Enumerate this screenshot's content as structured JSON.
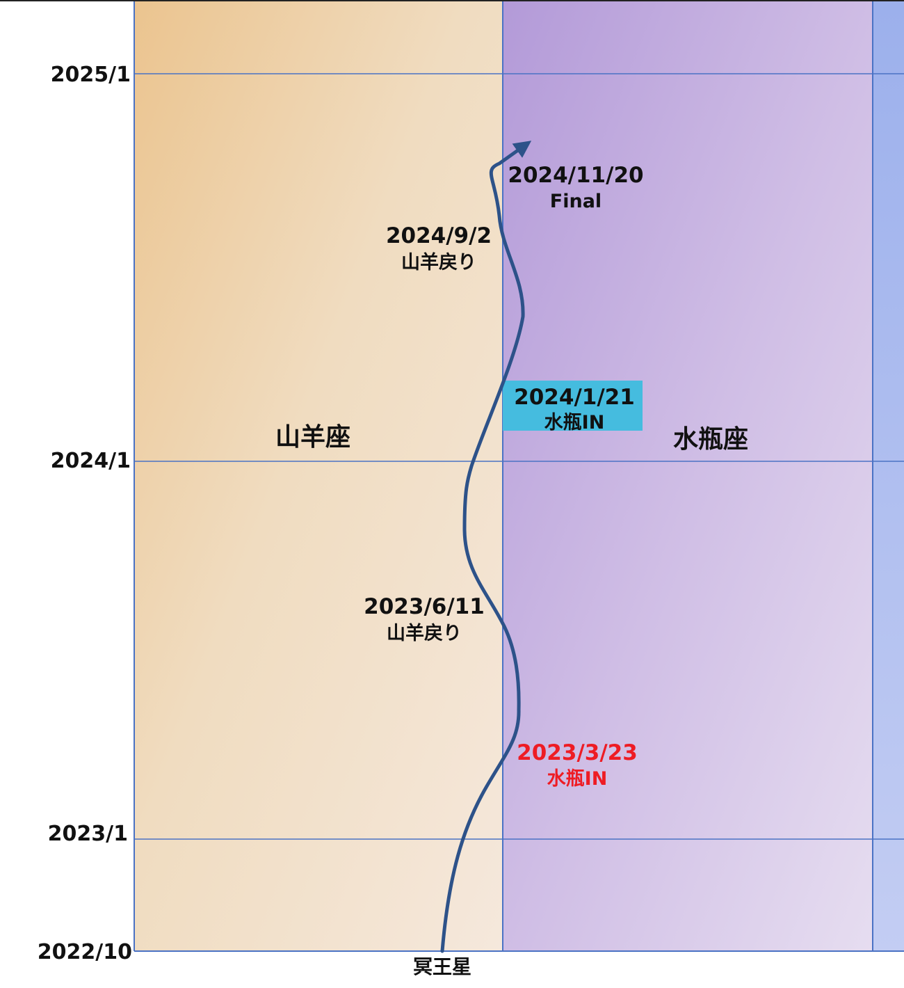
{
  "diagram": {
    "y_axis": {
      "ticks": [
        "2025/1",
        "2024/1",
        "2023/1",
        "2022/10"
      ]
    },
    "zones": [
      {
        "label": "山羊座"
      },
      {
        "label": "水瓶座"
      },
      {
        "label": ""
      }
    ],
    "path_label": "冥王星",
    "events": [
      {
        "date": "2024/11/20",
        "note": "Final"
      },
      {
        "date": "2024/9/2",
        "note": "山羊戻り"
      },
      {
        "date": "2024/1/21",
        "note": "水瓶IN",
        "highlight_bg": "#45bcdf"
      },
      {
        "date": "2023/6/11",
        "note": "山羊戻り"
      },
      {
        "date": "2023/3/23",
        "note": "水瓶IN",
        "text_color": "#ee1c24"
      }
    ],
    "colors": {
      "capricorn_zone": "#f0d9b5",
      "aquarius_zone": "#c6b2e0",
      "pisces_zone": "#a8b6ee",
      "grid_line": "#4a72c4",
      "path": "#2d5289",
      "label_text": "#111111",
      "highlight_bg": "#45bcdf",
      "red_text": "#ee1c24"
    }
  }
}
